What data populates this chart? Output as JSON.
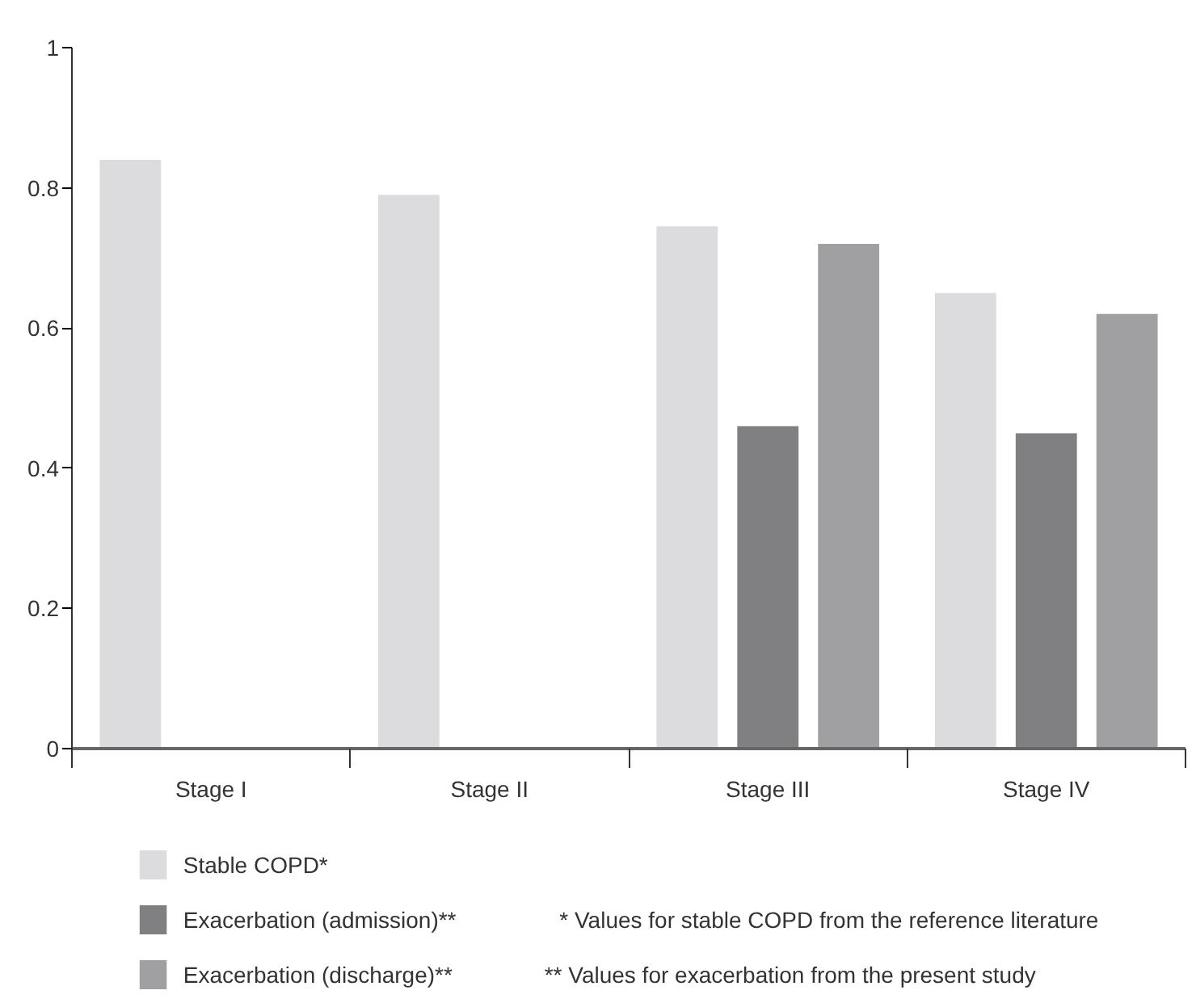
{
  "chart_data": {
    "type": "bar",
    "categories": [
      "Stage I",
      "Stage II",
      "Stage III",
      "Stage IV"
    ],
    "series": [
      {
        "name": "Stable COPD*",
        "color": "#dcdcde",
        "values": [
          0.84,
          0.79,
          0.745,
          0.65
        ]
      },
      {
        "name": "Exacerbation (admission)**",
        "color": "#808083",
        "values": [
          null,
          null,
          0.46,
          0.45
        ]
      },
      {
        "name": "Exacerbation (discharge)**",
        "color": "#a0a0a3",
        "values": [
          null,
          null,
          0.72,
          0.62
        ]
      }
    ],
    "ylim": [
      0,
      1
    ],
    "yticks": [
      0,
      0.2,
      0.4,
      0.6,
      0.8,
      1
    ],
    "grid": false,
    "legend": "bottom",
    "annotations": [
      "* Values for stable COPD from the reference literature",
      "** Values for exacerbation from the present study"
    ]
  }
}
